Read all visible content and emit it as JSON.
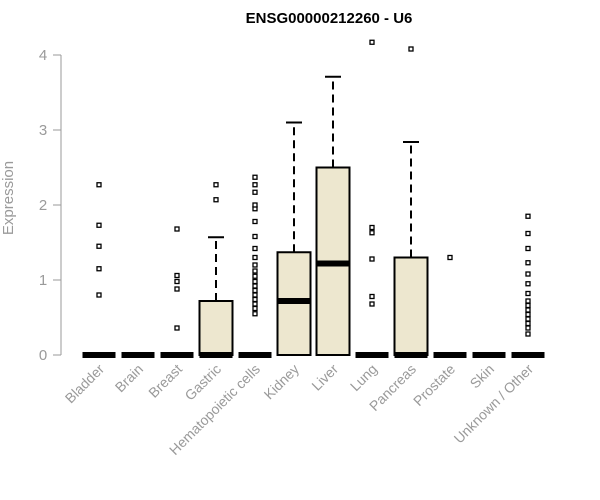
{
  "chart_data": {
    "type": "box",
    "title": "ENSG00000212260 - U6",
    "xlabel": "",
    "ylabel": "Expression",
    "ylim": [
      0,
      4.2
    ],
    "yticks": [
      0,
      1,
      2,
      3,
      4
    ],
    "grid": false,
    "legend": "none",
    "box_fill": "#ede7cf",
    "categories": [
      "Bladder",
      "Brain",
      "Breast",
      "Gastric",
      "Hematopoietic cells",
      "Kidney",
      "Liver",
      "Lung",
      "Pancreas",
      "Prostate",
      "Skin",
      "Unknown / Other"
    ],
    "boxes": [
      {
        "category": "Bladder",
        "min": 0,
        "q1": 0,
        "median": 0,
        "q3": 0,
        "max": 0,
        "outliers": [
          0.8,
          1.15,
          1.45,
          1.73,
          2.27
        ]
      },
      {
        "category": "Brain",
        "min": 0,
        "q1": 0,
        "median": 0,
        "q3": 0,
        "max": 0,
        "outliers": []
      },
      {
        "category": "Breast",
        "min": 0,
        "q1": 0,
        "median": 0,
        "q3": 0,
        "max": 0,
        "outliers": [
          0.36,
          0.88,
          0.98,
          1.06,
          1.68
        ]
      },
      {
        "category": "Gastric",
        "min": 0,
        "q1": 0,
        "median": 0,
        "q3": 0.72,
        "max": 1.57,
        "outliers": [
          2.07,
          2.27
        ]
      },
      {
        "category": "Hematopoietic cells",
        "min": 0,
        "q1": 0,
        "median": 0,
        "q3": 0,
        "max": 0,
        "outliers": [
          0.55,
          0.62,
          0.68,
          0.74,
          0.8,
          0.86,
          0.92,
          0.98,
          1.05,
          1.12,
          1.2,
          1.3,
          1.42,
          1.58,
          1.78,
          1.95,
          2.0,
          2.17,
          2.27,
          2.37
        ]
      },
      {
        "category": "Kidney",
        "min": 0,
        "q1": 0,
        "median": 0.72,
        "q3": 1.37,
        "max": 3.1,
        "outliers": []
      },
      {
        "category": "Liver",
        "min": 0,
        "q1": 0,
        "median": 1.22,
        "q3": 2.5,
        "max": 3.71,
        "outliers": []
      },
      {
        "category": "Lung",
        "min": 0,
        "q1": 0,
        "median": 0,
        "q3": 0,
        "max": 0,
        "outliers": [
          0.68,
          0.78,
          1.28,
          1.63,
          1.7,
          4.17
        ]
      },
      {
        "category": "Pancreas",
        "min": 0,
        "q1": 0,
        "median": 0,
        "q3": 1.3,
        "max": 2.84,
        "outliers": [
          4.08
        ]
      },
      {
        "category": "Prostate",
        "min": 0,
        "q1": 0,
        "median": 0,
        "q3": 0,
        "max": 0,
        "outliers": [
          1.3
        ]
      },
      {
        "category": "Skin",
        "min": 0,
        "q1": 0,
        "median": 0,
        "q3": 0,
        "max": 0,
        "outliers": []
      },
      {
        "category": "Unknown / Other",
        "min": 0,
        "q1": 0,
        "median": 0,
        "q3": 0,
        "max": 0,
        "outliers": [
          0.28,
          0.36,
          0.42,
          0.48,
          0.54,
          0.6,
          0.66,
          0.72,
          0.82,
          0.95,
          1.08,
          1.23,
          1.42,
          1.62,
          1.85
        ]
      }
    ]
  }
}
